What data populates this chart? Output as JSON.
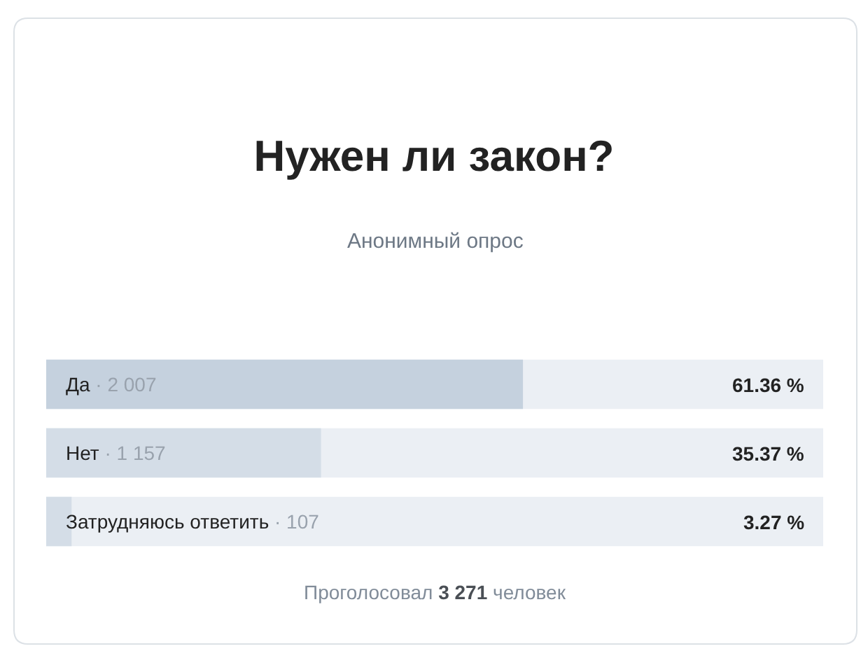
{
  "chart_data": {
    "type": "bar",
    "orientation": "horizontal",
    "title": "Нужен ли закон?",
    "subtitle": "Анонимный опрос",
    "categories": [
      "Да",
      "Нет",
      "Затрудняюсь ответить"
    ],
    "values": [
      61.36,
      35.37,
      3.27
    ],
    "colors": [
      "#c5d1de",
      "#d4dde7",
      "#d4dde7"
    ],
    "value_labels": [
      "61.36 %",
      "35.37 %",
      "3.27 %"
    ],
    "xlim": [
      0,
      100
    ],
    "tick_labels": "y",
    "annotations": [
      "· 2 007",
      "· 1 157",
      "· 107",
      "Проголосовал 3 271 человек"
    ]
  }
}
